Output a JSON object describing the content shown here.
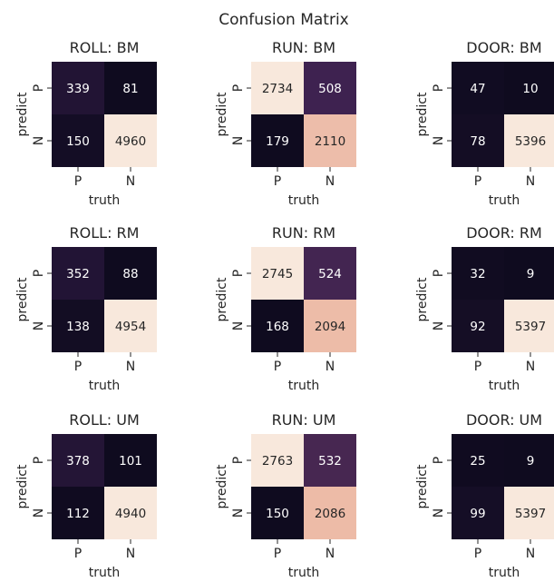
{
  "figure": {
    "title": "Confusion Matrix"
  },
  "colors": {
    "low": "#0f0b1f",
    "mid": "#3a1f4f",
    "high_orange": "#e0886b",
    "highest_cream": "#f8e8dc",
    "text_dark": "#262626",
    "text_light": "#ffffff"
  },
  "chart_data": [
    {
      "type": "heatmap",
      "title": "ROLL: BM",
      "xlabel": "truth",
      "ylabel": "predict",
      "x_ticks": [
        "P",
        "N"
      ],
      "y_ticks": [
        "P",
        "N"
      ],
      "values": [
        [
          339,
          81
        ],
        [
          150,
          4960
        ]
      ]
    },
    {
      "type": "heatmap",
      "title": "RUN: BM",
      "xlabel": "truth",
      "ylabel": "predict",
      "x_ticks": [
        "P",
        "N"
      ],
      "y_ticks": [
        "P",
        "N"
      ],
      "values": [
        [
          2734,
          508
        ],
        [
          179,
          2110
        ]
      ]
    },
    {
      "type": "heatmap",
      "title": "DOOR: BM",
      "xlabel": "truth",
      "ylabel": "predict",
      "x_ticks": [
        "P",
        "N"
      ],
      "y_ticks": [
        "P",
        "N"
      ],
      "values": [
        [
          47,
          10
        ],
        [
          78,
          5396
        ]
      ]
    },
    {
      "type": "heatmap",
      "title": "ROLL: RM",
      "xlabel": "truth",
      "ylabel": "predict",
      "x_ticks": [
        "P",
        "N"
      ],
      "y_ticks": [
        "P",
        "N"
      ],
      "values": [
        [
          352,
          88
        ],
        [
          138,
          4954
        ]
      ]
    },
    {
      "type": "heatmap",
      "title": "RUN: RM",
      "xlabel": "truth",
      "ylabel": "predict",
      "x_ticks": [
        "P",
        "N"
      ],
      "y_ticks": [
        "P",
        "N"
      ],
      "values": [
        [
          2745,
          524
        ],
        [
          168,
          2094
        ]
      ]
    },
    {
      "type": "heatmap",
      "title": "DOOR: RM",
      "xlabel": "truth",
      "ylabel": "predict",
      "x_ticks": [
        "P",
        "N"
      ],
      "y_ticks": [
        "P",
        "N"
      ],
      "values": [
        [
          32,
          9
        ],
        [
          92,
          5397
        ]
      ]
    },
    {
      "type": "heatmap",
      "title": "ROLL: UM",
      "xlabel": "truth",
      "ylabel": "predict",
      "x_ticks": [
        "P",
        "N"
      ],
      "y_ticks": [
        "P",
        "N"
      ],
      "values": [
        [
          378,
          101
        ],
        [
          112,
          4940
        ]
      ]
    },
    {
      "type": "heatmap",
      "title": "RUN: UM",
      "xlabel": "truth",
      "ylabel": "predict",
      "x_ticks": [
        "P",
        "N"
      ],
      "y_ticks": [
        "P",
        "N"
      ],
      "values": [
        [
          2763,
          532
        ],
        [
          150,
          2086
        ]
      ]
    },
    {
      "type": "heatmap",
      "title": "DOOR: UM",
      "xlabel": "truth",
      "ylabel": "predict",
      "x_ticks": [
        "P",
        "N"
      ],
      "y_ticks": [
        "P",
        "N"
      ],
      "values": [
        [
          25,
          9
        ],
        [
          99,
          5397
        ]
      ]
    }
  ]
}
